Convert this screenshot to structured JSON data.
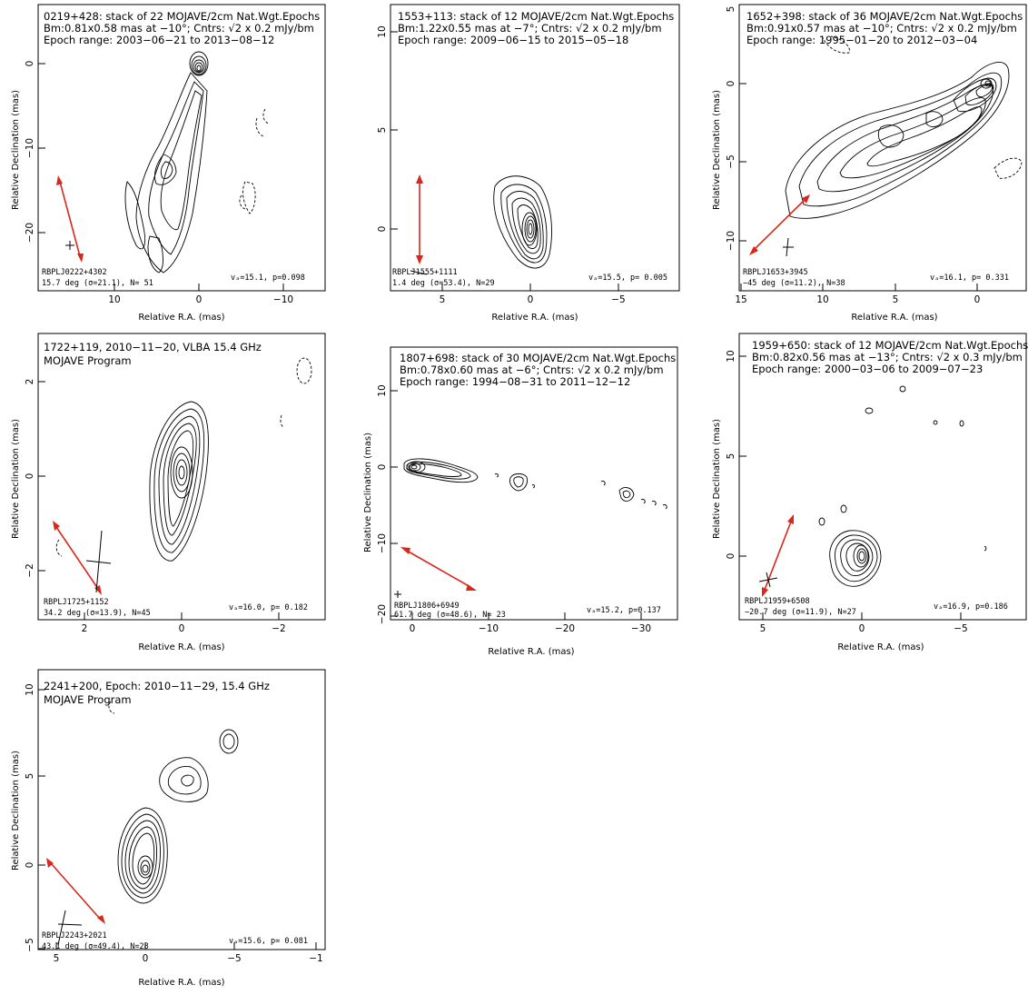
{
  "common": {
    "ylabel": "Relative Declination (mas)",
    "xlabel": "Relative R.A. (mas)"
  },
  "panels": [
    {
      "id": "0219",
      "header": [
        "0219+428: stack of 22 MOJAVE/2cm Nat.Wgt.Epochs",
        "Bm:0.81x0.58 mas at −10°; Cntrs: √2 x 0.2 mJy/bm",
        "Epoch range: 2003−06−21 to 2013−08−12"
      ],
      "footer_left": [
        "RBPLJ0222+4302",
        "15.7 deg (σ=21.1), N= 51"
      ],
      "footer_right": "vₐ=15.1, p=0.098",
      "xticks": [
        "10",
        "0",
        "−10"
      ],
      "yticks": [
        "0",
        "−10",
        "−20"
      ]
    },
    {
      "id": "1553",
      "header": [
        "1553+113: stack of 12 MOJAVE/2cm Nat.Wgt.Epochs",
        "Bm:1.22x0.55 mas at −7°; Cntrs: √2 x 0.2 mJy/bm",
        "Epoch range: 2009−06−15 to 2015−05−18"
      ],
      "footer_left": [
        "RBPLJ1555+1111",
        "1.4 deg (σ=53.4), N=29"
      ],
      "footer_right": "vₐ=15.5, p= 0.005",
      "xticks": [
        "5",
        "0",
        "−5"
      ],
      "yticks": [
        "10",
        "5",
        "0"
      ]
    },
    {
      "id": "1652",
      "header": [
        "1652+398: stack of 36 MOJAVE/2cm Nat.Wgt.Epochs",
        "Bm:0.91x0.57 mas at −10°; Cntrs: √2 x 0.2 mJy/bm",
        "Epoch range: 1995−01−20 to 2012−03−04"
      ],
      "footer_left": [
        "RBPLJ1653+3945",
        "−45 deg (σ=11.2), N=38"
      ],
      "footer_right": "vₐ=16.1, p= 0.331",
      "xticks": [
        "15",
        "10",
        "5",
        "0"
      ],
      "yticks": [
        "5",
        "0",
        "−5",
        "−10"
      ]
    },
    {
      "id": "1722",
      "header": [
        "1722+119, 2010−11−20, VLBA 15.4 GHz",
        "MOJAVE Program"
      ],
      "footer_left": [
        "RBPLJ1725+1152",
        "34.2 deg (σ=13.9), N=45"
      ],
      "footer_right": "vₐ=16.0, p= 0.182",
      "xticks": [
        "2",
        "0",
        "−2"
      ],
      "yticks": [
        "2",
        "0",
        "−2"
      ]
    },
    {
      "id": "1807",
      "header": [
        "1807+698: stack of 30 MOJAVE/2cm Nat.Wgt.Epochs",
        "Bm:0.78x0.60 mas at −6°; Cntrs: √2 x 0.2 mJy/bm",
        "Epoch range: 1994−08−31 to 2011−12−12"
      ],
      "footer_left": [
        "RBPLJ1806+6949",
        "61.7 deg (σ=48.6), N= 23"
      ],
      "footer_right": "vₐ=15.2, p=0.137",
      "xticks": [
        "0",
        "−10",
        "−20",
        "−30"
      ],
      "yticks": [
        "10",
        "0",
        "−10",
        "−20"
      ]
    },
    {
      "id": "1959",
      "header": [
        "1959+650: stack of 12 MOJAVE/2cm Nat.Wgt.Epochs",
        "Bm:0.82x0.56 mas at −13°; Cntrs: √2 x 0.3 mJy/bm",
        "Epoch range: 2000−03−06 to 2009−07−23"
      ],
      "footer_left": [
        "RBPLJ1959+6508",
        "−20.7 deg (σ=11.9), N=27"
      ],
      "footer_right": "vₐ=16.9, p=0.186",
      "xticks": [
        "5",
        "0",
        "−5"
      ],
      "yticks": [
        "10",
        "5",
        "0"
      ]
    },
    {
      "id": "2241",
      "header": [
        "2241+200, Epoch: 2010−11−29, 15.4 GHz",
        "MOJAVE Program"
      ],
      "footer_left": [
        "RBPLJ2243+2021",
        "43.1 deg (σ=49.4), N=28"
      ],
      "footer_right": "vₐ=15.6, p= 0.081",
      "xticks": [
        "5",
        "0",
        "−5",
        "−1"
      ],
      "yticks": [
        "10",
        "5",
        "0",
        "−5"
      ]
    }
  ]
}
